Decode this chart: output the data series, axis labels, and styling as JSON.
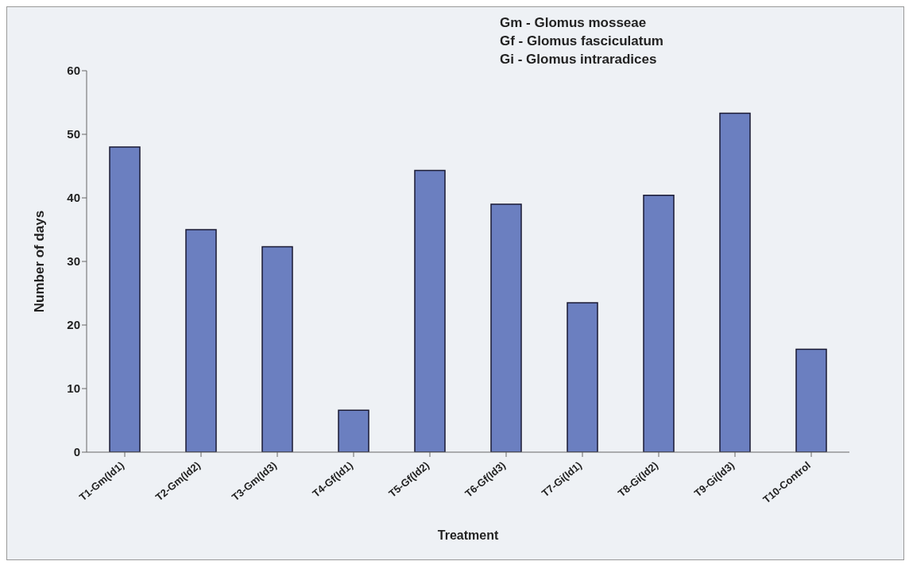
{
  "chart_data": {
    "type": "bar",
    "xlabel": "Treatment",
    "ylabel": "Number of days",
    "categories": [
      "T1-Gm(Id1)",
      "T2-Gm(Id2)",
      "T3-Gm(Id3)",
      "T4-Gf(Id1)",
      "T5-Gf(Id2)",
      "T6-Gf(Id3)",
      "T7-Gi(Id1)",
      "T8-Gi(Id2)",
      "T9-Gi(Id3)",
      "T10-Control"
    ],
    "values": [
      48,
      35,
      32.3,
      6.6,
      44.3,
      39,
      23.5,
      40.4,
      53.3,
      16.2
    ],
    "color": "#6b7fc0",
    "ylim": [
      0,
      60
    ],
    "yticks": [
      0,
      10,
      20,
      30,
      40,
      50,
      60
    ],
    "grid": false,
    "legend": false,
    "annotations": [
      "Gm - Glomus mosseae",
      "Gf - Glomus fasciculatum",
      "Gi - Glomus intraradices"
    ]
  }
}
